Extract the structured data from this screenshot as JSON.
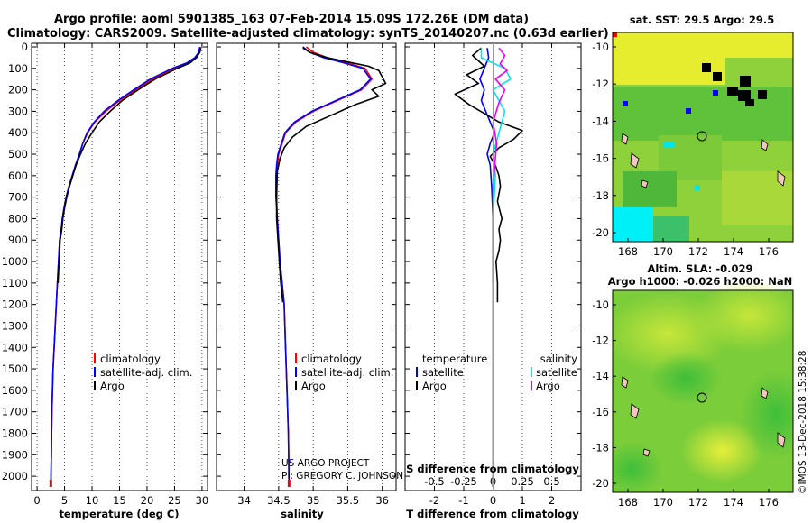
{
  "header": {
    "title_line1": "Argo profile: aoml 5901385_163 07-Feb-2014 15.09S 172.26E (DM data)",
    "title_line2": "Climatology: CARS2009. Satellite-adjusted climatology: synTS_20140207.nc (0.63d earlier)"
  },
  "colors": {
    "climatology": "#ff0000",
    "satellite": "#0000ff",
    "argo": "#000000",
    "sat_salinity": "#00e5ee",
    "argo_salinity": "#ee00ee"
  },
  "depth_axis": {
    "ylim": [
      2050,
      0
    ],
    "ticks": [
      0,
      100,
      200,
      300,
      400,
      500,
      600,
      700,
      800,
      900,
      1000,
      1100,
      1200,
      1300,
      1400,
      1500,
      1600,
      1700,
      1800,
      1900,
      2000
    ]
  },
  "chart_data": [
    {
      "type": "line",
      "name": "temperature",
      "xlabel": "temperature (deg C)",
      "xlim": [
        -1,
        31
      ],
      "xticks": [
        0,
        5,
        10,
        15,
        20,
        25,
        30
      ],
      "legend": [
        "climatology",
        "satellite-adj. clim.",
        "Argo"
      ],
      "series": [
        {
          "name": "climatology",
          "color_key": "climatology",
          "x": [
            29.7,
            29.5,
            28.8,
            27.5,
            25,
            21,
            18,
            15,
            12.5,
            10.5,
            9.2,
            8.3,
            7.7,
            7.0,
            6.4,
            5.8,
            5.3,
            4.9,
            4.6,
            4.4,
            4.1,
            3.9,
            3.7,
            3.5,
            3.3,
            3.1,
            2.9,
            2.7,
            2.6,
            2.5
          ],
          "depth": [
            0,
            25,
            50,
            75,
            100,
            150,
            200,
            250,
            300,
            350,
            400,
            450,
            500,
            550,
            600,
            650,
            700,
            750,
            800,
            850,
            900,
            1000,
            1100,
            1200,
            1300,
            1400,
            1500,
            1700,
            1900,
            2050
          ]
        },
        {
          "name": "satellite-adj. clim.",
          "color_key": "satellite",
          "x": [
            29.6,
            29.4,
            28.7,
            27.2,
            24.6,
            20.6,
            17.6,
            14.7,
            12.2,
            10.4,
            9.1,
            8.3,
            7.7,
            7.0,
            6.4,
            5.8,
            5.3,
            4.9,
            4.6,
            4.4,
            4.1,
            3.9,
            3.7,
            3.5,
            3.3,
            3.1,
            2.9,
            2.7,
            2.6,
            2.5
          ],
          "depth": [
            0,
            25,
            50,
            75,
            100,
            150,
            200,
            250,
            300,
            350,
            400,
            450,
            500,
            550,
            600,
            650,
            700,
            750,
            800,
            850,
            900,
            1000,
            1100,
            1200,
            1300,
            1400,
            1500,
            1700,
            1900,
            2050
          ]
        },
        {
          "name": "Argo",
          "color_key": "argo",
          "x": [
            29.8,
            29.6,
            29.0,
            27.8,
            25.5,
            21.5,
            18.4,
            15.5,
            13.3,
            11.3,
            10.0,
            8.8,
            7.9,
            7.1,
            6.5,
            5.9,
            5.4,
            5.0,
            4.7,
            4.5,
            4.2,
            4.0,
            3.8
          ],
          "depth": [
            5,
            25,
            50,
            75,
            100,
            150,
            200,
            250,
            300,
            350,
            400,
            450,
            500,
            550,
            600,
            650,
            700,
            750,
            800,
            850,
            900,
            1000,
            1100
          ]
        }
      ]
    },
    {
      "type": "line",
      "name": "salinity",
      "xlabel": "salinity",
      "xlim": [
        33.6,
        36.2
      ],
      "xticks": [
        34,
        34.5,
        35,
        35.5,
        36
      ],
      "xtick_labels": [
        "34",
        "34.5",
        "35",
        "35.5",
        "36"
      ],
      "legend": [
        "climatology",
        "satellite-adj. clim.",
        "Argo"
      ],
      "series": [
        {
          "name": "climatology",
          "color_key": "climatology",
          "x": [
            34.9,
            35.0,
            35.2,
            35.5,
            35.75,
            35.85,
            35.7,
            35.35,
            35.0,
            34.75,
            34.6,
            34.55,
            34.5,
            34.48,
            34.47,
            34.47,
            34.48,
            34.5,
            34.52,
            34.55,
            34.58,
            34.6,
            34.62,
            34.64,
            34.65
          ],
          "depth": [
            0,
            25,
            50,
            75,
            100,
            150,
            200,
            250,
            300,
            350,
            400,
            450,
            500,
            550,
            600,
            700,
            800,
            900,
            1000,
            1100,
            1200,
            1400,
            1600,
            1800,
            2050
          ]
        },
        {
          "name": "satellite-adj. clim.",
          "color_key": "satellite",
          "x": [
            34.85,
            34.95,
            35.15,
            35.45,
            35.72,
            35.83,
            35.68,
            35.33,
            34.98,
            34.73,
            34.59,
            34.54,
            34.49,
            34.47,
            34.46,
            34.46,
            34.48,
            34.5,
            34.52,
            34.55,
            34.58,
            34.6,
            34.62,
            34.64,
            34.65
          ],
          "depth": [
            0,
            25,
            50,
            75,
            100,
            150,
            200,
            250,
            300,
            350,
            400,
            450,
            500,
            550,
            600,
            700,
            800,
            900,
            1000,
            1100,
            1200,
            1400,
            1600,
            1800,
            2050
          ]
        },
        {
          "name": "Argo",
          "color_key": "argo",
          "x": [
            34.85,
            34.95,
            35.2,
            35.5,
            35.8,
            35.95,
            36.05,
            35.85,
            35.95,
            35.6,
            35.25,
            34.9,
            34.7,
            34.58,
            34.52,
            34.48,
            34.47,
            34.47,
            34.49,
            34.51,
            34.53,
            34.56
          ],
          "depth": [
            5,
            25,
            50,
            70,
            90,
            110,
            170,
            200,
            230,
            270,
            320,
            370,
            420,
            470,
            520,
            580,
            700,
            800,
            900,
            1000,
            1100,
            1190
          ]
        }
      ]
    },
    {
      "type": "line",
      "name": "difference",
      "xlabel": "T difference from climatology",
      "xlabel_top": "S difference from climatology",
      "xlim": [
        -3,
        3
      ],
      "xticks": [
        -2,
        -1,
        0,
        1,
        2
      ],
      "s_xticks": [
        -0.5,
        -0.25,
        0,
        0.25,
        0.5
      ],
      "s_xtick_labels": [
        "-0.5",
        "-0.25",
        "0",
        "0.25",
        "0.5"
      ],
      "s_scale": 4,
      "legend_temperature_title": "temperature",
      "legend_salinity_title": "salinity",
      "legend_temperature": [
        "satellite",
        "Argo"
      ],
      "legend_salinity": [
        "satellite",
        "Argo"
      ],
      "series": [
        {
          "name": "T satellite",
          "color_key": "satellite",
          "x": [
            -0.2,
            -0.15,
            -0.3,
            -0.45,
            -0.3,
            -0.4,
            -0.25,
            -0.1,
            0.05,
            -0.1,
            -0.2,
            -0.1,
            -0.05,
            0,
            0,
            0,
            0,
            0,
            0,
            0
          ],
          "depth": [
            5,
            50,
            100,
            150,
            200,
            250,
            300,
            350,
            400,
            450,
            500,
            550,
            650,
            800,
            1000,
            1200,
            1500,
            1700,
            1900,
            2050
          ]
        },
        {
          "name": "T Argo",
          "color_key": "argo",
          "x": [
            -0.4,
            -0.7,
            -0.3,
            -0.9,
            -0.5,
            -1.3,
            -0.8,
            -0.3,
            0.2,
            1.0,
            0.7,
            0.2,
            -0.1,
            0.1,
            0.2,
            0.25,
            0.15,
            0.3,
            0.2,
            0.25,
            0.2,
            0.1,
            0.15,
            0.15
          ],
          "depth": [
            5,
            40,
            90,
            130,
            170,
            220,
            270,
            310,
            350,
            390,
            430,
            470,
            510,
            560,
            600,
            650,
            720,
            800,
            850,
            900,
            950,
            1000,
            1100,
            1190
          ]
        },
        {
          "name": "S satellite",
          "color_key": "sat_salinity",
          "x": [
            -0.1,
            -0.1,
            0.1,
            0.15,
            0,
            0.1,
            0.05,
            0,
            0.02,
            0,
            0,
            0,
            0,
            0,
            0
          ],
          "depth": [
            5,
            50,
            100,
            150,
            200,
            300,
            400,
            500,
            600,
            800,
            1000,
            1200,
            1500,
            1800,
            2050
          ]
        },
        {
          "name": "S Argo",
          "color_key": "argo_salinity",
          "x": [
            0.05,
            0.1,
            0.06,
            0.12,
            0.02,
            0.1,
            0.05,
            0,
            0.03,
            0,
            0
          ],
          "depth": [
            5,
            40,
            80,
            110,
            150,
            200,
            260,
            350,
            450,
            650,
            1100
          ]
        }
      ]
    }
  ],
  "map_top": {
    "title": "sat. SST: 29.5 Argo: 29.5",
    "xticks": [
      "168",
      "170",
      "172",
      "174",
      "176"
    ],
    "yticks": [
      "-10",
      "-12",
      "-14",
      "-16",
      "-18",
      "-20"
    ]
  },
  "map_bottom": {
    "title_line1": "Altim. SLA: -0.029",
    "title_line2": "Argo h1000: -0.026 h2000: NaN",
    "xticks": [
      "168",
      "170",
      "172",
      "174",
      "176"
    ],
    "yticks": [
      "-10",
      "-12",
      "-14",
      "-16",
      "-18",
      "-20"
    ]
  },
  "credit": {
    "line1": "US ARGO PROJECT",
    "line2": "PI: GREGORY C. JOHNSON"
  },
  "footer": "©IMOS 13-Dec-2018 15:38:28"
}
